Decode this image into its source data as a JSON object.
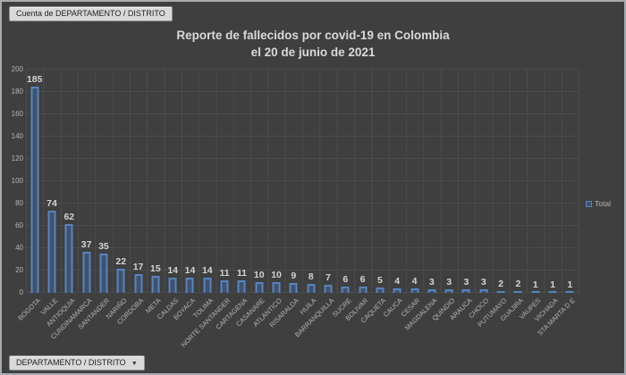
{
  "window": {
    "background": "#3f3f3f",
    "border_color": "#a7abb0"
  },
  "pivot_buttons": {
    "top_field_button": "Cuenta de DEPARTAMENTO  / DISTRITO",
    "bottom_field_button": "DEPARTAMENTO / DISTRITO",
    "dropdown_arrow": "▼"
  },
  "chart_data": {
    "type": "bar",
    "title": "Reporte de fallecidos por covid-19 en Colombia el 20 de junio de 2021",
    "title_lines": [
      "Reporte de fallecidos por covid-19 en Colombia",
      "el 20 de junio de 2021"
    ],
    "legend": [
      "Total"
    ],
    "legend_position": "right",
    "grid": true,
    "ylim": [
      0,
      200
    ],
    "ytick_step": 20,
    "yticks": [
      0,
      20,
      40,
      60,
      80,
      100,
      120,
      140,
      160,
      180,
      200
    ],
    "categories": [
      "BOGOTA",
      "VALLE",
      "ANTIOQUIA",
      "CUNDINAMARCA",
      "SANTANDER",
      "NARIÑO",
      "CORDOBA",
      "META",
      "CALDAS",
      "BOYACA",
      "TOLIMA",
      "NORTE SANTANDER",
      "CARTAGENA",
      "CASANARE",
      "ATLANTICO",
      "RISARALDA",
      "HUILA",
      "BARRANQUILLA",
      "SUCRE",
      "BOLIVAR",
      "CAQUETA",
      "CAUCA",
      "CESAR",
      "MAGDALENA",
      "QUINDIO",
      "ARAUCA",
      "CHOCO",
      "PUTUMAYO",
      "GUAJIRA",
      "VAUPES",
      "VICHADA",
      "STA MARTA D E"
    ],
    "values": [
      185,
      74,
      62,
      37,
      35,
      22,
      17,
      15,
      14,
      14,
      14,
      11,
      11,
      10,
      10,
      9,
      8,
      7,
      6,
      6,
      5,
      4,
      4,
      3,
      3,
      3,
      3,
      2,
      2,
      1,
      1,
      1
    ],
    "data_labels": true,
    "bar_fill": "#41516e",
    "bar_border": "#5585c0"
  }
}
